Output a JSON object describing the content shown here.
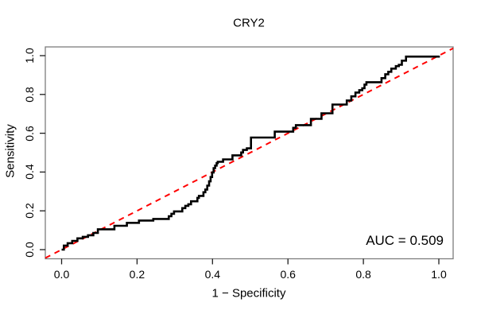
{
  "title": "CRY2",
  "annotation": {
    "auc_label": "AUC = 0.509"
  },
  "chart_data": {
    "type": "line",
    "subtype": "roc-step-curve",
    "title": "CRY2",
    "xlabel": "1 − Specificity",
    "ylabel": "Sensitivity",
    "xlim": [
      0,
      1
    ],
    "ylim": [
      0,
      1
    ],
    "grid": false,
    "x_ticks": [
      "0.0",
      "0.2",
      "0.4",
      "0.6",
      "0.8",
      "1.0"
    ],
    "y_ticks": [
      "0.0",
      "0.2",
      "0.4",
      "0.6",
      "0.8",
      "1.0"
    ],
    "auc": 0.509,
    "annotations": [
      {
        "text": "AUC = 0.509",
        "position": "bottom-right"
      }
    ],
    "colors": {
      "roc_curve": "#000000",
      "diagonal": "#ff0000",
      "box": "#7d7d7d",
      "ticks": "#1c1c1c"
    },
    "series": [
      {
        "name": "ROC curve",
        "style": "step-solid",
        "color": "#000000",
        "points": [
          [
            0.0,
            0.0
          ],
          [
            0.006,
            0.021
          ],
          [
            0.016,
            0.033
          ],
          [
            0.028,
            0.045
          ],
          [
            0.042,
            0.058
          ],
          [
            0.056,
            0.066
          ],
          [
            0.07,
            0.074
          ],
          [
            0.084,
            0.086
          ],
          [
            0.096,
            0.105
          ],
          [
            0.14,
            0.123
          ],
          [
            0.173,
            0.138
          ],
          [
            0.205,
            0.15
          ],
          [
            0.243,
            0.158
          ],
          [
            0.284,
            0.172
          ],
          [
            0.291,
            0.185
          ],
          [
            0.298,
            0.197
          ],
          [
            0.32,
            0.214
          ],
          [
            0.328,
            0.226
          ],
          [
            0.336,
            0.234
          ],
          [
            0.343,
            0.249
          ],
          [
            0.36,
            0.267
          ],
          [
            0.364,
            0.277
          ],
          [
            0.376,
            0.296
          ],
          [
            0.381,
            0.31
          ],
          [
            0.386,
            0.33
          ],
          [
            0.391,
            0.352
          ],
          [
            0.395,
            0.374
          ],
          [
            0.399,
            0.398
          ],
          [
            0.403,
            0.42
          ],
          [
            0.407,
            0.433
          ],
          [
            0.411,
            0.446
          ],
          [
            0.414,
            0.453
          ],
          [
            0.428,
            0.465
          ],
          [
            0.453,
            0.486
          ],
          [
            0.476,
            0.501
          ],
          [
            0.481,
            0.514
          ],
          [
            0.491,
            0.522
          ],
          [
            0.502,
            0.578
          ],
          [
            0.565,
            0.608
          ],
          [
            0.614,
            0.628
          ],
          [
            0.621,
            0.642
          ],
          [
            0.661,
            0.674
          ],
          [
            0.689,
            0.703
          ],
          [
            0.718,
            0.748
          ],
          [
            0.756,
            0.769
          ],
          [
            0.768,
            0.79
          ],
          [
            0.779,
            0.81
          ],
          [
            0.789,
            0.822
          ],
          [
            0.797,
            0.832
          ],
          [
            0.803,
            0.851
          ],
          [
            0.808,
            0.863
          ],
          [
            0.848,
            0.884
          ],
          [
            0.858,
            0.904
          ],
          [
            0.866,
            0.917
          ],
          [
            0.874,
            0.933
          ],
          [
            0.886,
            0.946
          ],
          [
            0.894,
            0.953
          ],
          [
            0.902,
            0.974
          ],
          [
            0.913,
            0.995
          ],
          [
            1.0,
            1.0
          ]
        ]
      },
      {
        "name": "chance diagonal",
        "style": "dashed",
        "color": "#ff0000",
        "points": [
          [
            0,
            0
          ],
          [
            1,
            1
          ]
        ]
      }
    ]
  }
}
